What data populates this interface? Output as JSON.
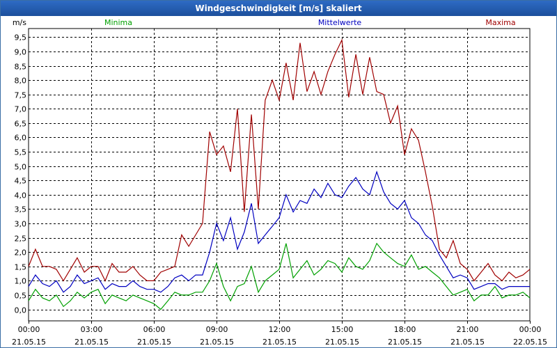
{
  "title": "Windgeschwindigkeit [m/s] skaliert",
  "chart_data": {
    "type": "line",
    "title": "Windgeschwindigkeit [m/s] skaliert",
    "ylabel": "m/s",
    "xlabel": "",
    "ylim": [
      -0.4,
      9.8
    ],
    "xlim": [
      0,
      24
    ],
    "grid": true,
    "legend_position": "top",
    "y_ticks": [
      "0,0",
      "0,5",
      "1,0",
      "1,5",
      "2,0",
      "2,5",
      "3,0",
      "3,5",
      "4,0",
      "4,5",
      "5,0",
      "5,5",
      "6,0",
      "6,5",
      "7,0",
      "7,5",
      "8,0",
      "8,5",
      "9,0",
      "9,5"
    ],
    "y_tick_values": [
      0,
      0.5,
      1,
      1.5,
      2,
      2.5,
      3,
      3.5,
      4,
      4.5,
      5,
      5.5,
      6,
      6.5,
      7,
      7.5,
      8,
      8.5,
      9,
      9.5
    ],
    "x_ticks": [
      {
        "time": "00:00",
        "date": "21.05.15"
      },
      {
        "time": "03:00",
        "date": "21.05.15"
      },
      {
        "time": "06:00",
        "date": "21.05.15"
      },
      {
        "time": "09:00",
        "date": "21.05.15"
      },
      {
        "time": "12:00",
        "date": "21.05.15"
      },
      {
        "time": "15:00",
        "date": "21.05.15"
      },
      {
        "time": "18:00",
        "date": "21.05.15"
      },
      {
        "time": "21:00",
        "date": "21.05.15"
      },
      {
        "time": "00:00",
        "date": "22.05.15"
      }
    ],
    "x_tick_hours": [
      0,
      3,
      6,
      9,
      12,
      15,
      18,
      21,
      24
    ],
    "series": [
      {
        "name": "Minima",
        "color": "#00a000",
        "x": [
          0,
          0.33,
          0.67,
          1,
          1.33,
          1.67,
          2,
          2.33,
          2.67,
          3,
          3.33,
          3.67,
          4,
          4.33,
          4.67,
          5,
          5.33,
          5.67,
          6,
          6.33,
          6.67,
          7,
          7.33,
          7.67,
          8,
          8.33,
          8.67,
          9,
          9.33,
          9.67,
          10,
          10.33,
          10.67,
          11,
          11.33,
          11.67,
          12,
          12.33,
          12.67,
          13,
          13.33,
          13.67,
          14,
          14.33,
          14.67,
          15,
          15.33,
          15.67,
          16,
          16.33,
          16.67,
          17,
          17.33,
          17.67,
          18,
          18.33,
          18.67,
          19,
          19.33,
          19.67,
          20,
          20.33,
          20.67,
          21,
          21.33,
          21.67,
          22,
          22.33,
          22.67,
          23,
          23.33,
          23.67,
          24
        ],
        "values": [
          0.3,
          0.7,
          0.4,
          0.3,
          0.5,
          0.1,
          0.3,
          0.6,
          0.4,
          0.6,
          0.7,
          0.2,
          0.5,
          0.4,
          0.3,
          0.5,
          0.4,
          0.3,
          0.2,
          0,
          0.3,
          0.6,
          0.5,
          0.5,
          0.6,
          0.6,
          1,
          1.6,
          0.8,
          0.3,
          0.8,
          0.9,
          1.5,
          0.6,
          1,
          1.2,
          1.4,
          2.3,
          1.1,
          1.4,
          1.7,
          1.2,
          1.4,
          1.7,
          1.6,
          1.3,
          1.8,
          1.5,
          1.4,
          1.7,
          2.3,
          2.0,
          1.8,
          1.6,
          1.5,
          1.9,
          1.4,
          1.5,
          1.3,
          1.1,
          0.8,
          0.5,
          0.6,
          0.7,
          0.3,
          0.5,
          0.5,
          0.8,
          0.4,
          0.5,
          0.5,
          0.6,
          0.4
        ]
      },
      {
        "name": "Mittelwerte",
        "color": "#0000c0",
        "x": [
          0,
          0.33,
          0.67,
          1,
          1.33,
          1.67,
          2,
          2.33,
          2.67,
          3,
          3.33,
          3.67,
          4,
          4.33,
          4.67,
          5,
          5.33,
          5.67,
          6,
          6.33,
          6.67,
          7,
          7.33,
          7.67,
          8,
          8.33,
          8.67,
          9,
          9.33,
          9.67,
          10,
          10.33,
          10.67,
          11,
          11.33,
          11.67,
          12,
          12.33,
          12.67,
          13,
          13.33,
          13.67,
          14,
          14.33,
          14.67,
          15,
          15.33,
          15.67,
          16,
          16.33,
          16.67,
          17,
          17.33,
          17.67,
          18,
          18.33,
          18.67,
          19,
          19.33,
          19.67,
          20,
          20.33,
          20.67,
          21,
          21.33,
          21.67,
          22,
          22.33,
          22.67,
          23,
          23.33,
          23.67,
          24
        ],
        "values": [
          0.8,
          1.2,
          0.9,
          0.8,
          1.0,
          0.6,
          0.8,
          1.2,
          0.9,
          1.0,
          1.1,
          0.7,
          0.9,
          0.8,
          0.8,
          1.0,
          0.8,
          0.7,
          0.7,
          0.6,
          0.8,
          1.1,
          1.2,
          1.0,
          1.2,
          1.2,
          2.0,
          3.0,
          2.4,
          3.2,
          2.1,
          2.7,
          3.7,
          2.3,
          2.6,
          2.9,
          3.2,
          4.0,
          3.4,
          3.8,
          3.7,
          4.2,
          3.9,
          4.4,
          4.0,
          3.9,
          4.3,
          4.6,
          4.2,
          4.0,
          4.8,
          4.1,
          3.7,
          3.5,
          3.8,
          3.2,
          3.0,
          2.6,
          2.4,
          1.9,
          1.5,
          1.1,
          1.2,
          1.1,
          0.7,
          0.8,
          0.9,
          0.9,
          0.7,
          0.8,
          0.8,
          0.8,
          0.8
        ]
      },
      {
        "name": "Maxima",
        "color": "#a00000",
        "x": [
          0,
          0.33,
          0.67,
          1,
          1.33,
          1.67,
          2,
          2.33,
          2.67,
          3,
          3.33,
          3.67,
          4,
          4.33,
          4.67,
          5,
          5.33,
          5.67,
          6,
          6.33,
          6.67,
          7,
          7.33,
          7.67,
          8,
          8.33,
          8.67,
          9,
          9.33,
          9.67,
          10,
          10.33,
          10.67,
          11,
          11.33,
          11.67,
          12,
          12.33,
          12.67,
          13,
          13.33,
          13.67,
          14,
          14.33,
          14.67,
          15,
          15.33,
          15.67,
          16,
          16.33,
          16.67,
          17,
          17.33,
          17.67,
          18,
          18.33,
          18.67,
          19,
          19.33,
          19.67,
          20,
          20.33,
          20.67,
          21,
          21.33,
          21.67,
          22,
          22.33,
          22.67,
          23,
          23.33,
          23.67,
          24
        ],
        "values": [
          1.5,
          2.1,
          1.5,
          1.5,
          1.4,
          1.0,
          1.4,
          1.8,
          1.3,
          1.5,
          1.5,
          1.0,
          1.6,
          1.3,
          1.3,
          1.5,
          1.2,
          1.0,
          1.0,
          1.3,
          1.4,
          1.5,
          2.6,
          2.2,
          2.6,
          3.0,
          6.2,
          5.4,
          5.7,
          4.8,
          7.0,
          3.4,
          6.8,
          3.5,
          7.3,
          8.0,
          7.3,
          8.6,
          7.3,
          9.3,
          7.6,
          8.3,
          7.5,
          8.3,
          8.9,
          9.4,
          7.4,
          8.9,
          7.5,
          8.8,
          7.6,
          7.5,
          6.5,
          7.1,
          5.4,
          6.3,
          5.9,
          4.8,
          3.6,
          2.1,
          1.8,
          2.4,
          1.6,
          1.4,
          1.0,
          1.3,
          1.6,
          1.2,
          1.0,
          1.3,
          1.1,
          1.2,
          1.4
        ]
      }
    ]
  }
}
